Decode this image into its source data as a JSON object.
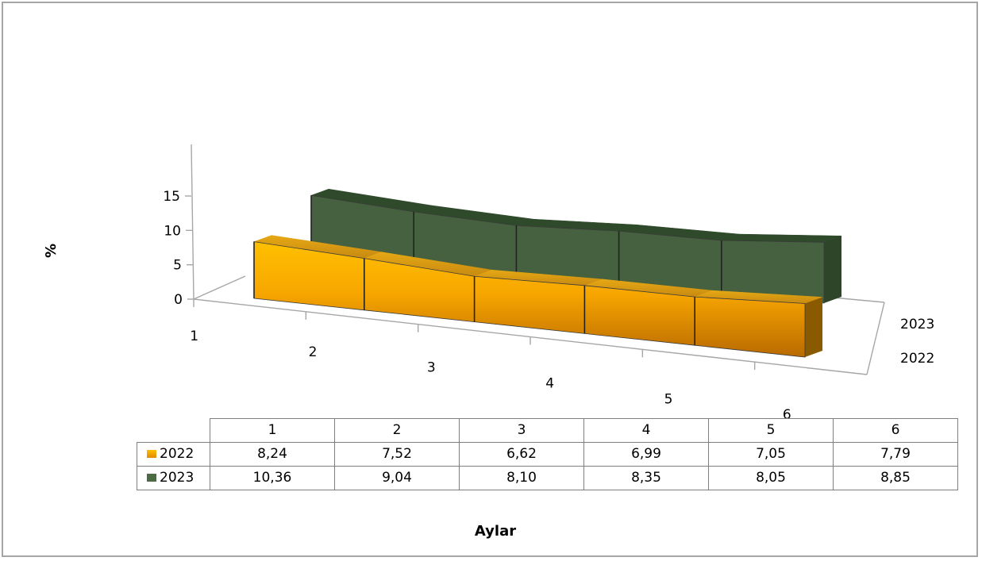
{
  "chart_data": {
    "type": "area",
    "is_3d": true,
    "categories": [
      "1",
      "2",
      "3",
      "4",
      "5",
      "6"
    ],
    "series": [
      {
        "name": "2022",
        "values": [
          8.24,
          7.52,
          6.62,
          6.99,
          7.05,
          7.79
        ],
        "value_labels": [
          "8,24",
          "7,52",
          "6,62",
          "6,99",
          "7,05",
          "7,79"
        ],
        "color": "#FFB000"
      },
      {
        "name": "2023",
        "values": [
          10.36,
          9.04,
          8.1,
          8.35,
          8.05,
          8.85
        ],
        "value_labels": [
          "10,36",
          "9,04",
          "8,10",
          "8,35",
          "8,05",
          "8,85"
        ],
        "color": "#4A6B44"
      }
    ],
    "xlabel": "Aylar",
    "ylabel": "%",
    "ylim": [
      0,
      15
    ],
    "yticks": [
      "0",
      "5",
      "10",
      "15"
    ],
    "depth_labels": [
      "2023",
      "2022"
    ],
    "data_table": true,
    "legend": "data-table"
  }
}
